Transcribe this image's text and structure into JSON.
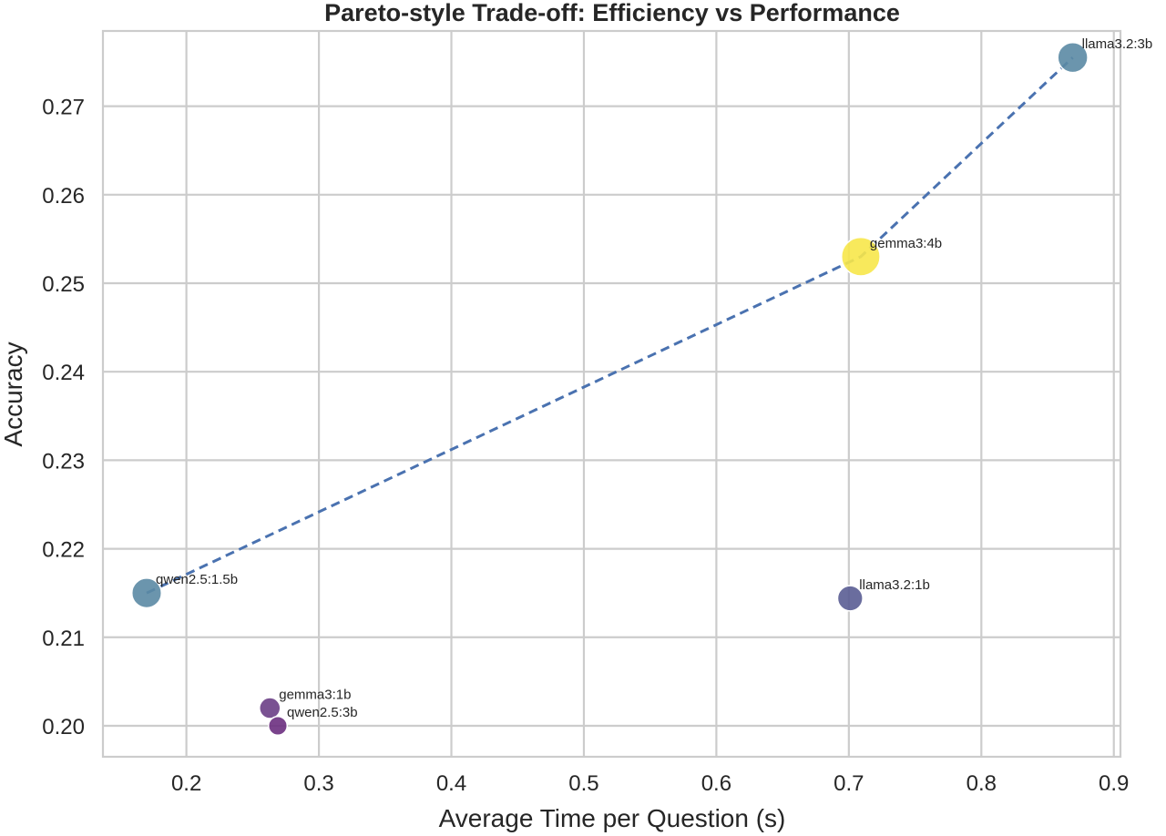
{
  "chart_data": {
    "type": "scatter",
    "title": "Pareto-style Trade-off: Efficiency vs Performance",
    "xlabel": "Average Time per Question (s)",
    "ylabel": "Accuracy",
    "xlim": [
      0.137,
      0.905
    ],
    "ylim": [
      0.1965,
      0.2785
    ],
    "xticks": [
      0.2,
      0.3,
      0.4,
      0.5,
      0.6,
      0.7,
      0.8,
      0.9
    ],
    "xtick_labels": [
      "0.2",
      "0.3",
      "0.4",
      "0.5",
      "0.6",
      "0.7",
      "0.8",
      "0.9"
    ],
    "yticks": [
      0.2,
      0.21,
      0.22,
      0.23,
      0.24,
      0.25,
      0.26,
      0.27
    ],
    "ytick_labels": [
      "0.20",
      "0.21",
      "0.22",
      "0.23",
      "0.24",
      "0.25",
      "0.26",
      "0.27"
    ],
    "grid": true,
    "points": [
      {
        "label": "qwen2.5:1.5b",
        "x": 0.17,
        "y": 0.215,
        "size": 2.0,
        "color": "#5b8aa4"
      },
      {
        "label": "gemma3:1b",
        "x": 0.263,
        "y": 0.202,
        "size": 1.0,
        "color": "#6b3f86"
      },
      {
        "label": "qwen2.5:3b",
        "x": 0.269,
        "y": 0.2,
        "size": 0.8,
        "color": "#6b2f80"
      },
      {
        "label": "llama3.2:1b",
        "x": 0.701,
        "y": 0.2144,
        "size": 1.45,
        "color": "#5a5d94"
      },
      {
        "label": "gemma3:4b",
        "x": 0.709,
        "y": 0.253,
        "size": 3.4,
        "color": "#f7e74a"
      },
      {
        "label": "llama3.2:3b",
        "x": 0.869,
        "y": 0.2755,
        "size": 2.05,
        "color": "#5b8aa4"
      }
    ],
    "frontier": {
      "x": [
        0.17,
        0.709,
        0.869
      ],
      "y": [
        0.215,
        0.253,
        0.2755
      ],
      "color": "#4a72b0",
      "style": "dashed"
    }
  }
}
